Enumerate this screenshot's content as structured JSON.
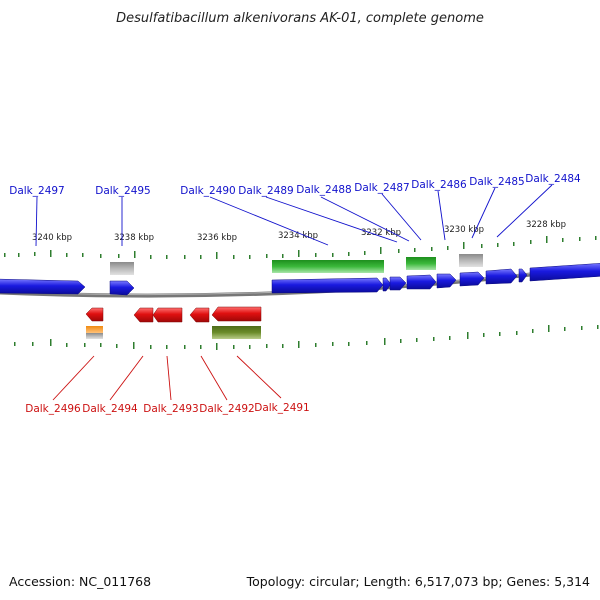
{
  "title": "Desulfatibacillum alkenivorans AK-01, complete genome",
  "footer": {
    "accession": "Accession: NC_011768",
    "summary": "Topology: circular; Length: 6,517,073 bp; Genes: 5,314"
  },
  "scale_labels": [
    "3240 kbp",
    "3238 kbp",
    "3236 kbp",
    "3234 kbp",
    "3232 kbp",
    "3230 kbp",
    "3228 kbp"
  ],
  "top_genes": [
    "Dalk_2497",
    "Dalk_2495",
    "Dalk_2490",
    "Dalk_2489",
    "Dalk_2488",
    "Dalk_2487",
    "Dalk_2486",
    "Dalk_2485",
    "Dalk_2484"
  ],
  "bottom_genes": [
    "Dalk_2496",
    "Dalk_2494",
    "Dalk_2493",
    "Dalk_2492",
    "Dalk_2491"
  ],
  "colors": {
    "forward_gene": "#1a1ae0",
    "reverse_gene": "#e01010",
    "rna": "#3ab83a",
    "pseudo": "#b0b0b0",
    "other": "#6b8c2a",
    "trna": "#f08a10",
    "backbone": "#808080",
    "ticks": "#2e7d2e",
    "top_label": "#1111cc",
    "bottom_label": "#cc1111"
  }
}
